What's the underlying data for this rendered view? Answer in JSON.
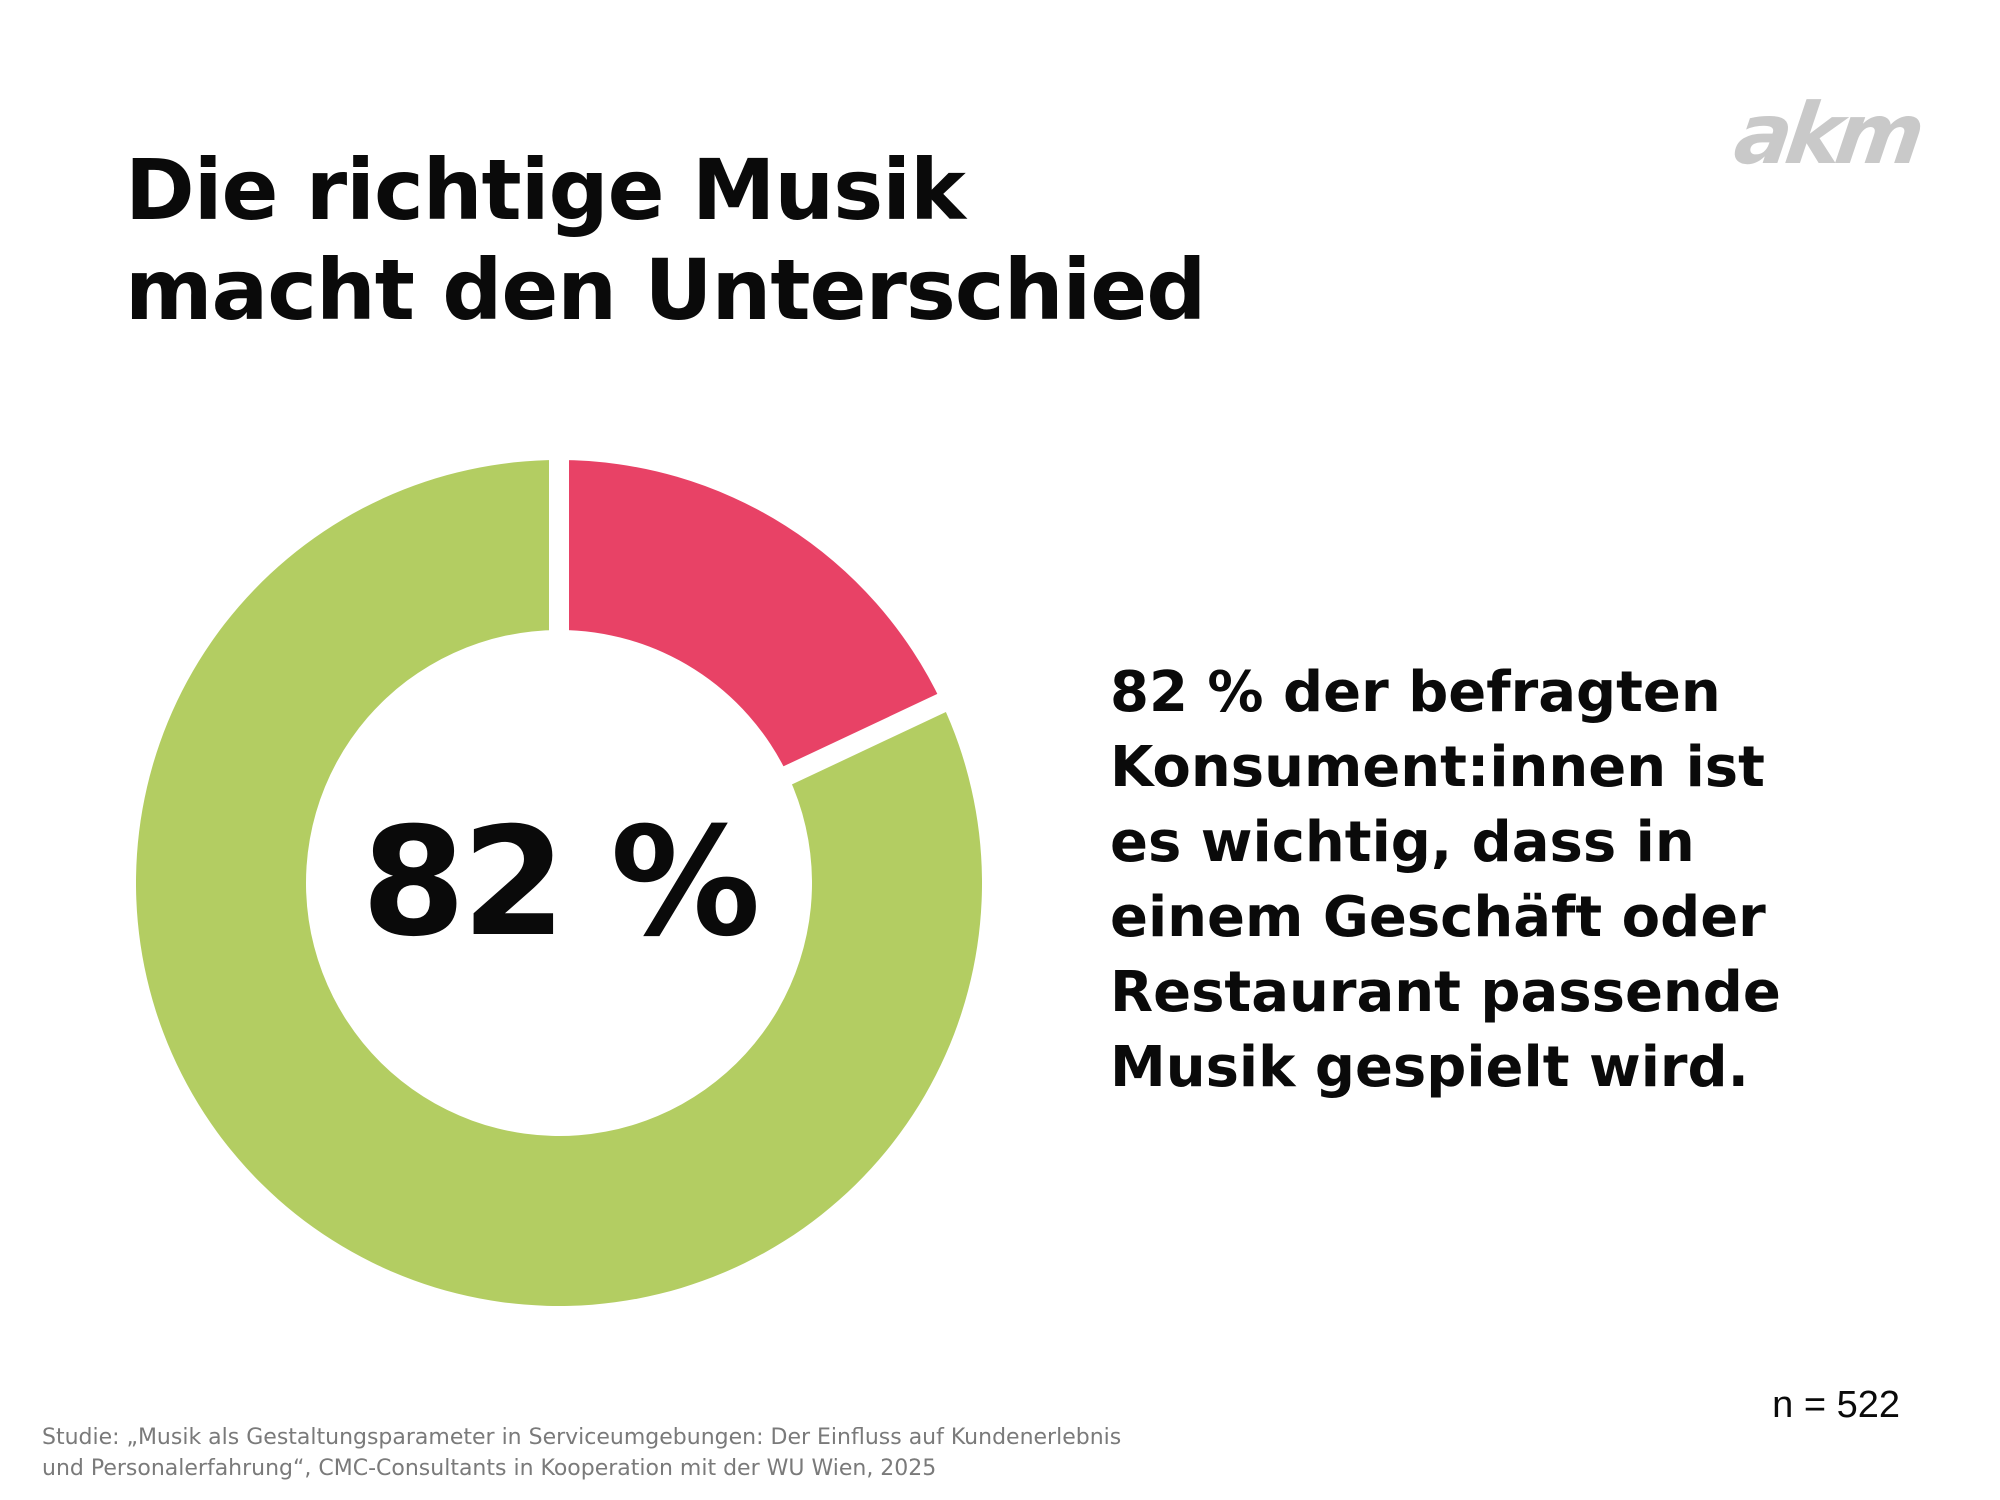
{
  "header": {
    "title_lines": [
      "Die richtige Musik",
      "macht den Unterschied"
    ],
    "logo_text": "akm"
  },
  "chart_data": {
    "type": "pie",
    "style": "donut",
    "center_label": "82 %",
    "slices": [
      {
        "value": 82,
        "color": "#b3cd62"
      },
      {
        "value": 18,
        "color": "#e84266"
      }
    ],
    "start": "top, clockwise: 18 % slice first, then 82 % slice"
  },
  "statement": {
    "lines": [
      "82 % der befragten",
      "Konsument:innen ist",
      "es wichtig, dass in",
      "einem Geschäft oder",
      "Restaurant passende",
      "Musik gespielt wird."
    ]
  },
  "sample_size": "n = 522",
  "source": {
    "lines": [
      "Studie: „Musik als Gestaltungsparameter in Serviceumgebungen: Der Einfluss auf Kundenerlebnis",
      "und Personalerfahrung“, CMC-Consultants in Kooperation mit der WU Wien, 2025"
    ]
  }
}
